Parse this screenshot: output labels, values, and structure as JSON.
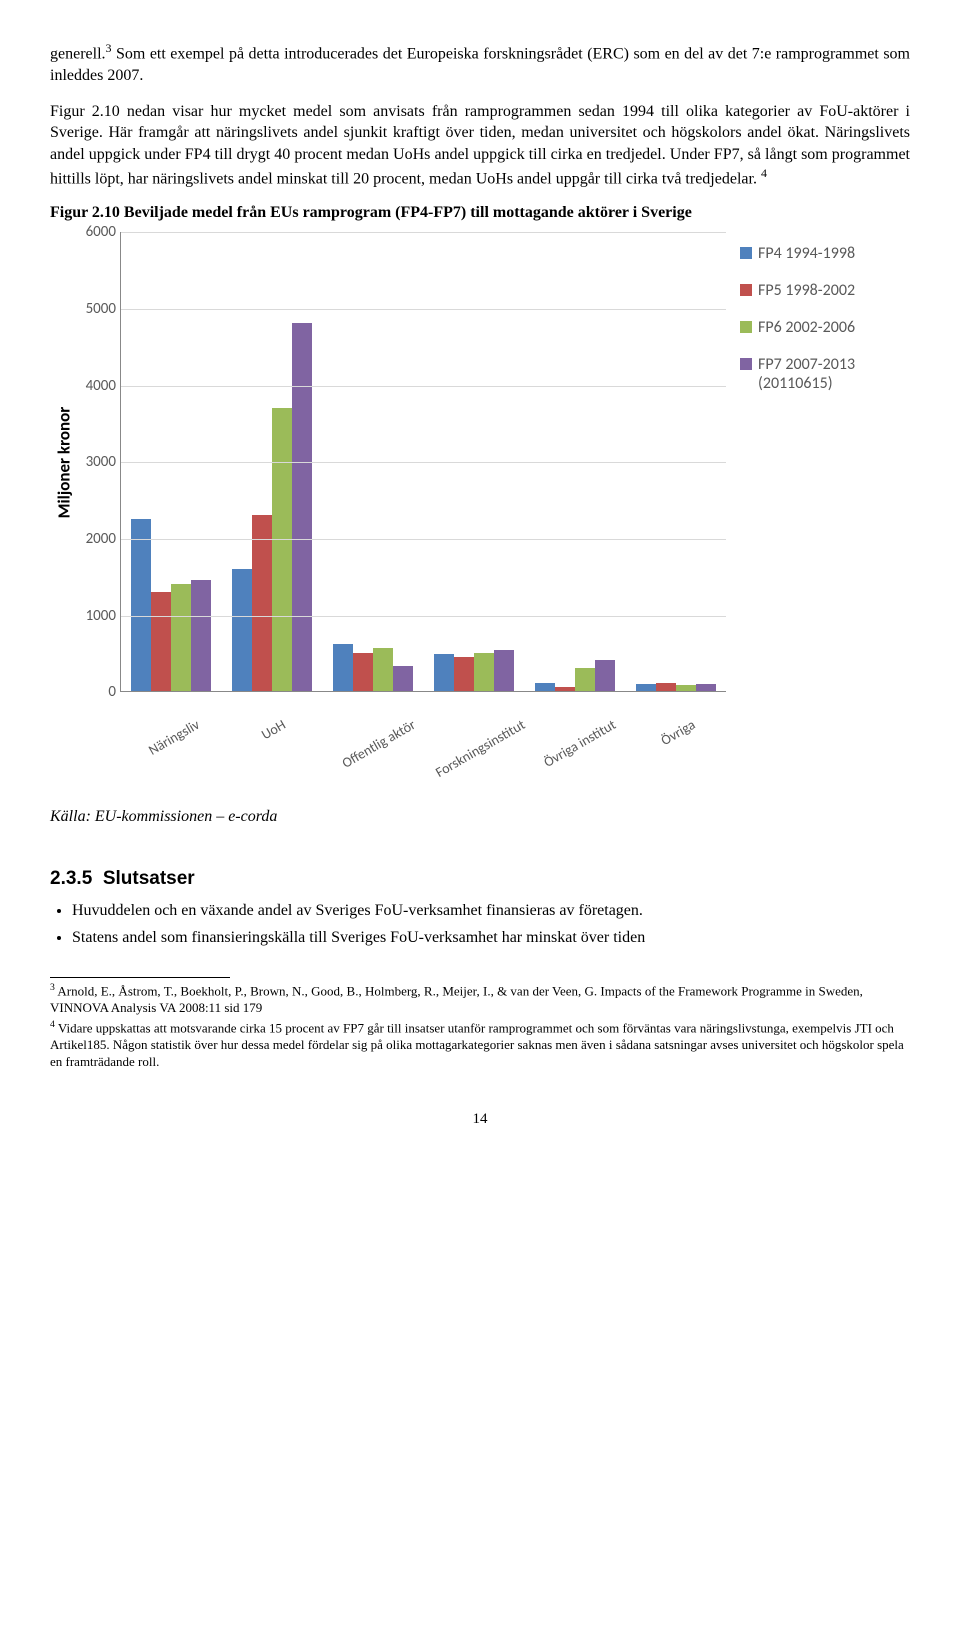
{
  "para1_a": "generell.",
  "para1_sup1": "3",
  "para1_b": " Som ett exempel på detta introducerades det Europeiska forskningsrådet (ERC) som en del av det 7:e ramprogrammet som inleddes 2007.",
  "para2_a": "Figur 2.10 nedan visar hur mycket medel som anvisats från ramprogrammen sedan 1994 till olika kategorier av FoU-aktörer i Sverige. Här framgår att näringslivets andel sjunkit kraftigt över tiden, medan universitet och högskolors andel ökat. Näringslivets andel uppgick under FP4 till drygt 40 procent medan UoHs andel uppgick till cirka en tredjedel. Under FP7, så långt som programmet hittills löpt, har näringslivets andel minskat till 20 procent, medan UoHs andel uppgår till cirka två tredjedelar. ",
  "para2_sup": "4",
  "figure_title": "Figur 2.10 Beviljade medel från EUs ramprogram (FP4-FP7) till mottagande aktörer i Sverige",
  "chart": {
    "ylabel": "Miljoner kronor",
    "ymax": 6000,
    "ytick_step": 1000,
    "yticks": [
      0,
      1000,
      2000,
      3000,
      4000,
      5000,
      6000
    ],
    "categories": [
      "Näringsliv",
      "UoH",
      "Offentlig aktör",
      "Forskningsinstitut",
      "Övriga institut",
      "Övriga"
    ],
    "series": [
      {
        "label": "FP4 1994-1998",
        "color": "#4f81bd"
      },
      {
        "label": "FP5 1998-2002",
        "color": "#c0504d"
      },
      {
        "label": "FP6 2002-2006",
        "color": "#9bbb59"
      },
      {
        "label": "FP7 2007-2013 (20110615)",
        "color": "#8064a2"
      }
    ],
    "values": [
      [
        2250,
        1300,
        1400,
        1450
      ],
      [
        1600,
        2300,
        3700,
        4800
      ],
      [
        620,
        500,
        560,
        330
      ],
      [
        490,
        450,
        500,
        540
      ],
      [
        110,
        60,
        300,
        410
      ],
      [
        90,
        110,
        80,
        100
      ]
    ],
    "grid_color": "#d9d9d9",
    "axis_color": "#888888"
  },
  "source": "Källa: EU-kommissionen – e-corda",
  "section_number": "2.3.5",
  "section_title": "Slutsatser",
  "conclusions": [
    "Huvuddelen och en växande andel av Sveriges FoU-verksamhet finansieras av företagen.",
    "Statens andel som finansieringskälla till Sveriges FoU-verksamhet har minskat över tiden"
  ],
  "footnotes": [
    {
      "num": "3",
      "text": " Arnold, E., Åstrom, T., Boekholt, P., Brown, N., Good, B., Holmberg, R., Meijer, I., & van der Veen, G. Impacts of the Framework Programme in Sweden, VINNOVA Analysis VA 2008:11 sid 179"
    },
    {
      "num": "4",
      "text": " Vidare uppskattas att motsvarande cirka 15 procent av FP7 går till insatser utanför ramprogrammet och som förväntas vara näringslivstunga, exempelvis JTI och Artikel185. Någon statistik över hur dessa medel fördelar sig på olika mottagarkategorier saknas men även i sådana satsningar avses universitet och högskolor spela en framträdande roll."
    }
  ],
  "page_number": "14"
}
